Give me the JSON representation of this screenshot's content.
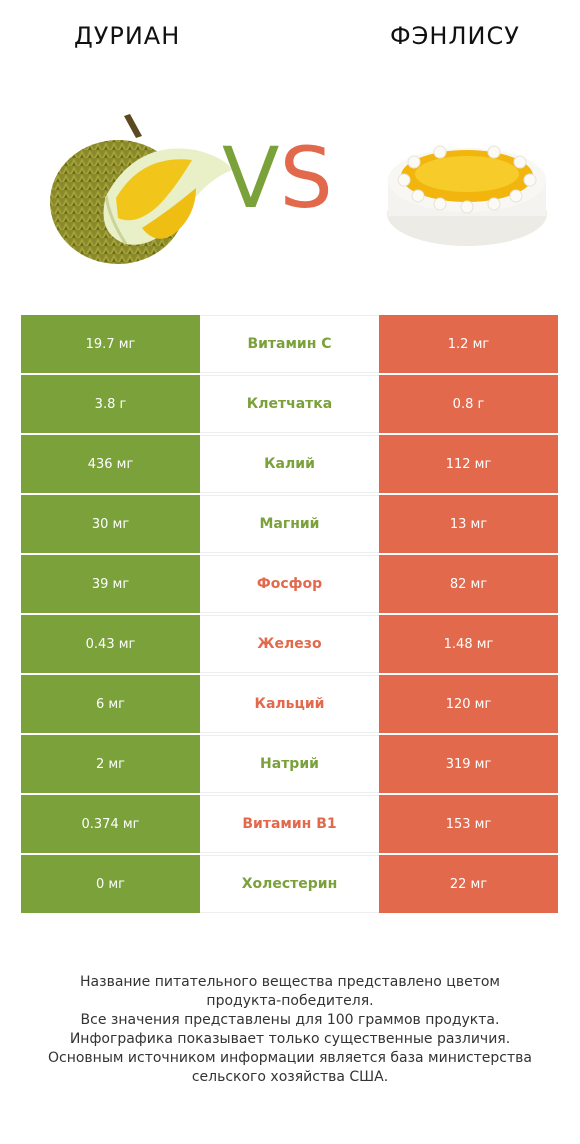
{
  "header": {
    "left_title": "ДУРИАН",
    "right_title": "ФЭНЛИСУ",
    "vs_v": "V",
    "vs_s": "S"
  },
  "colors": {
    "durian": "#7aa13a",
    "fenglisu": "#e2694b"
  },
  "rows": [
    {
      "left": "19.7 мг",
      "name": "Витамин C",
      "right": "1.2 мг",
      "winner": "left"
    },
    {
      "left": "3.8 г",
      "name": "Клетчатка",
      "right": "0.8 г",
      "winner": "left"
    },
    {
      "left": "436 мг",
      "name": "Калий",
      "right": "112 мг",
      "winner": "left"
    },
    {
      "left": "30 мг",
      "name": "Магний",
      "right": "13 мг",
      "winner": "left"
    },
    {
      "left": "39 мг",
      "name": "Фосфор",
      "right": "82 мг",
      "winner": "right"
    },
    {
      "left": "0.43 мг",
      "name": "Железо",
      "right": "1.48 мг",
      "winner": "right"
    },
    {
      "left": "6 мг",
      "name": "Кальций",
      "right": "120 мг",
      "winner": "right"
    },
    {
      "left": "2 мг",
      "name": "Натрий",
      "right": "319 мг",
      "winner": "left"
    },
    {
      "left": "0.374 мг",
      "name": "Витамин B1",
      "right": "153 мг",
      "winner": "right"
    },
    {
      "left": "0 мг",
      "name": "Холестерин",
      "right": "22 мг",
      "winner": "left"
    }
  ],
  "footer": {
    "line1": "Название питательного вещества представлено цветом",
    "line2": "продукта-победителя.",
    "line3": "Все значения представлены для 100 граммов продукта.",
    "line4": "Инфографика показывает только существенные различия.",
    "line5": "Основным источником информации является база министерства",
    "line6": "сельского хозяйства США."
  }
}
